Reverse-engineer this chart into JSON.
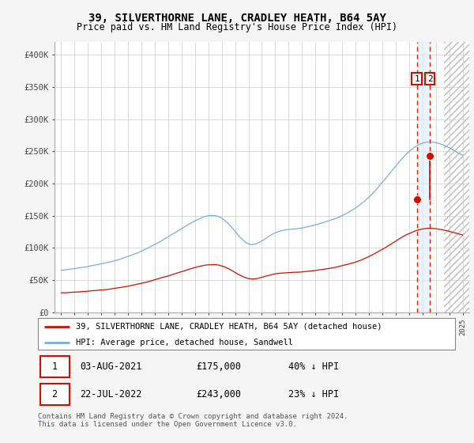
{
  "title": "39, SILVERTHORNE LANE, CRADLEY HEATH, B64 5AY",
  "subtitle": "Price paid vs. HM Land Registry's House Price Index (HPI)",
  "legend_line1": "39, SILVERTHORNE LANE, CRADLEY HEATH, B64 5AY (detached house)",
  "legend_line2": "HPI: Average price, detached house, Sandwell",
  "table_rows": [
    {
      "num": "1",
      "date": "03-AUG-2021",
      "price": "£175,000",
      "pct": "40% ↓ HPI"
    },
    {
      "num": "2",
      "date": "22-JUL-2022",
      "price": "£243,000",
      "pct": "23% ↓ HPI"
    }
  ],
  "footer": "Contains HM Land Registry data © Crown copyright and database right 2024.\nThis data is licensed under the Open Government Licence v3.0.",
  "hpi_color": "#7aaddc",
  "price_color": "#cc1100",
  "dot_color": "#cc1100",
  "vline1_color": "#dd2200",
  "vline2_color": "#dd2200",
  "vband_color": "#ddeeff",
  "sale1_year": 2021.58,
  "sale2_year": 2022.55,
  "sale1_price": 175000,
  "sale2_price": 243000,
  "ylim": [
    0,
    420000
  ],
  "xlim_start": 1994.5,
  "xlim_end": 2025.5,
  "hatch_start": 2023.6,
  "background_color": "#f5f5f5",
  "plot_bg": "#ffffff",
  "grid_color": "#cccccc"
}
